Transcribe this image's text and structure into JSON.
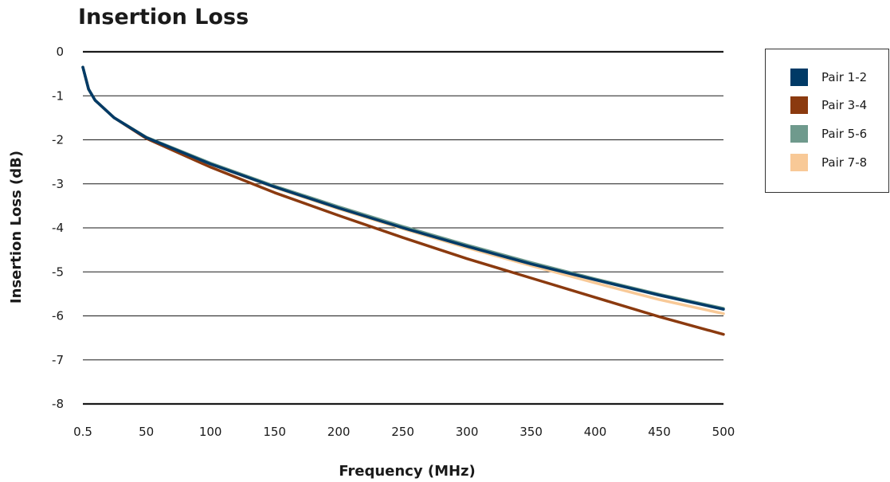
{
  "chart_data": {
    "type": "line",
    "title": "Insertion Loss",
    "xlabel": "Frequency (MHz)",
    "ylabel": "Insertion Loss (dB)",
    "xlim": [
      0.5,
      500
    ],
    "ylim": [
      -8,
      0
    ],
    "x_ticks": [
      "0.5",
      "50",
      "100",
      "150",
      "200",
      "250",
      "300",
      "350",
      "400",
      "450",
      "500"
    ],
    "y_ticks": [
      "0",
      "-1",
      "-2",
      "-3",
      "-4",
      "-5",
      "-6",
      "-7",
      "-8"
    ],
    "grid": "horizontal",
    "legend_position": "right",
    "x": [
      0.5,
      5,
      10,
      25,
      50,
      100,
      150,
      200,
      250,
      300,
      350,
      400,
      450,
      500
    ],
    "series": [
      {
        "name": "Pair 1-2",
        "color": "#003a66",
        "values": [
          -0.35,
          -0.85,
          -1.1,
          -1.5,
          -1.95,
          -2.55,
          -3.07,
          -3.55,
          -4.0,
          -4.42,
          -4.82,
          -5.18,
          -5.53,
          -5.85
        ]
      },
      {
        "name": "Pair 3-4",
        "color": "#8b3a0f",
        "values": [
          -0.35,
          -0.85,
          -1.1,
          -1.5,
          -1.97,
          -2.62,
          -3.2,
          -3.72,
          -4.22,
          -4.7,
          -5.14,
          -5.58,
          -6.02,
          -6.42
        ]
      },
      {
        "name": "Pair 5-6",
        "color": "#6f9a8d",
        "values": [
          -0.35,
          -0.85,
          -1.1,
          -1.5,
          -1.94,
          -2.53,
          -3.05,
          -3.52,
          -3.97,
          -4.39,
          -4.79,
          -5.16,
          -5.51,
          -5.83
        ]
      },
      {
        "name": "Pair 7-8",
        "color": "#f8c997",
        "values": [
          -0.35,
          -0.85,
          -1.1,
          -1.5,
          -1.94,
          -2.55,
          -3.08,
          -3.57,
          -4.02,
          -4.45,
          -4.86,
          -5.25,
          -5.63,
          -5.95
        ]
      }
    ]
  }
}
